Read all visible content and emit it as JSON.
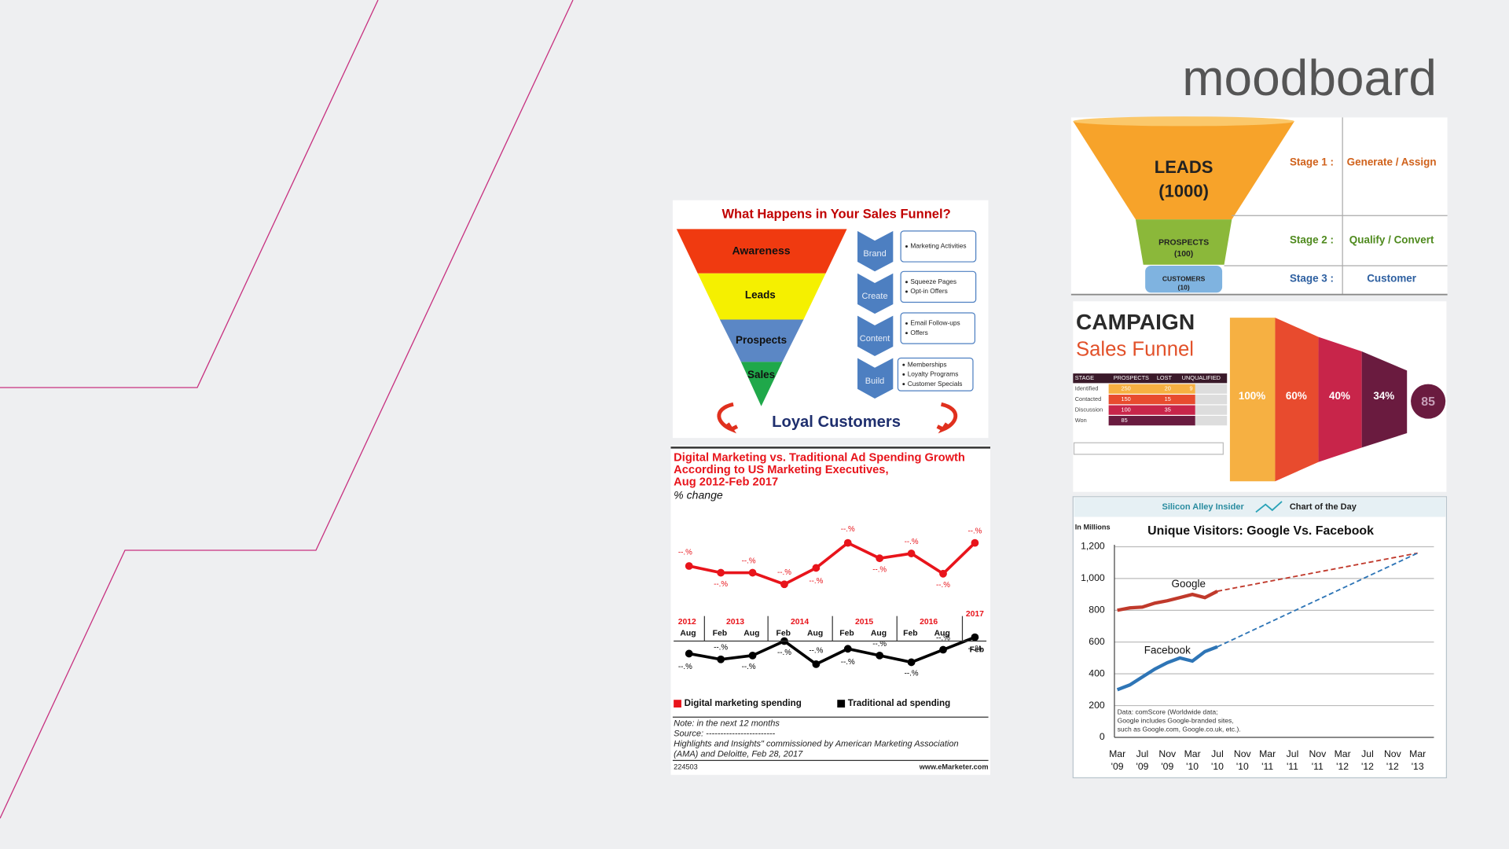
{
  "title": "moodboard",
  "sales_funnel": {
    "title": "What Happens in Your Sales Funnel?",
    "stages": [
      "Awareness",
      "Leads",
      "Prospects",
      "Sales"
    ],
    "steps": [
      {
        "label": "Brand",
        "items": [
          "Marketing Activities"
        ]
      },
      {
        "label": "Create",
        "items": [
          "Squeeze Pages",
          "Opt-in Offers"
        ]
      },
      {
        "label": "Content",
        "items": [
          "Email Follow-ups",
          "Offers"
        ]
      },
      {
        "label": "Build",
        "items": [
          "Memberships",
          "Loyalty Programs",
          "Customer Specials"
        ]
      }
    ],
    "footer": "Loyal Customers"
  },
  "ad_spending": {
    "title_lines": [
      "Digital Marketing vs. Traditional Ad Spending Growth",
      "According to US Marketing Executives,",
      "Aug 2012-Feb 2017"
    ],
    "subtitle": "% change",
    "point_label": "--.%",
    "years": [
      "2012",
      "2013",
      "2014",
      "2015",
      "2016",
      "2017"
    ],
    "months": [
      "Aug",
      "Feb",
      "Aug",
      "Feb",
      "Aug",
      "Feb",
      "Aug",
      "Feb",
      "Aug",
      "Feb"
    ],
    "ylim": [
      0,
      160
    ],
    "series": [
      {
        "name": "Digital marketing spending",
        "color": "#e8141b",
        "values": [
          112,
          105,
          105,
          93,
          110,
          136,
          120,
          125,
          104,
          136
        ]
      },
      {
        "name": "Traditional ad spending",
        "color": "#000000",
        "values": [
          21,
          15,
          19,
          34,
          10,
          26,
          19,
          12,
          25,
          38
        ]
      }
    ],
    "notes": [
      "Note: in the next 12 months",
      "Source: ------------------------",
      "Highlights and Insights\" commissioned by American Marketing Association",
      "(AMA) and Deloitte, Feb 28, 2017"
    ],
    "id": "224503",
    "site": "www.eMarketer.com"
  },
  "leads_funnel": {
    "levels": [
      {
        "name": "LEADS",
        "count": "(1000)"
      },
      {
        "name": "PROSPECTS",
        "count": "(100)"
      },
      {
        "name": "CUSTOMERS",
        "count": "(10)"
      }
    ],
    "stages": [
      {
        "label": "Stage 1 :",
        "action": "Generate / Assign"
      },
      {
        "label": "Stage 2 :",
        "action": "Qualify / Convert"
      },
      {
        "label": "Stage 3 :",
        "action": "Customer"
      }
    ]
  },
  "campaign": {
    "title": "CAMPAIGN",
    "subtitle": "Sales Funnel",
    "table_header": [
      "STAGE",
      "PROSPECTS",
      "LOST",
      "UNQUALIFIED"
    ],
    "table_rows": [
      [
        "Identified",
        "250",
        "20",
        "9"
      ],
      [
        "Contacted",
        "150",
        "15"
      ],
      [
        "Discussion",
        "100",
        "35"
      ],
      [
        "Won",
        "85"
      ]
    ],
    "bars": [
      "100%",
      "60%",
      "40%",
      "34%"
    ],
    "result": "85"
  },
  "visitors": {
    "header_left": "Silicon Alley Insider",
    "header_right": "Chart of the Day",
    "unit": "In Millions",
    "title": "Unique Visitors: Google Vs. Facebook",
    "ylim": [
      0,
      1200
    ],
    "yticks": [
      0,
      200,
      400,
      600,
      800,
      {
        "value": 1000,
        "label": "1,000"
      },
      {
        "value": 1200,
        "label": "1,200"
      }
    ],
    "xlim": [
      0,
      48
    ],
    "xtick_months": [
      "Mar",
      "Jul",
      "Nov",
      "Mar",
      "Jul",
      "Nov",
      "Mar",
      "Jul",
      "Nov",
      "Mar",
      "Jul",
      "Nov",
      "Mar"
    ],
    "xtick_years": [
      "'09",
      "'09",
      "'09",
      "'10",
      "'10",
      "'10",
      "'11",
      "'11",
      "'11",
      "'12",
      "'12",
      "'12",
      "'13"
    ],
    "series": [
      {
        "name": "Google",
        "color": "#c0392b",
        "x": [
          0,
          2,
          4,
          6,
          8,
          10,
          12,
          14,
          16
        ],
        "values": [
          800,
          815,
          820,
          845,
          860,
          880,
          900,
          880,
          920
        ],
        "projection_x": [
          16,
          48
        ],
        "projection_values": [
          920,
          1160
        ]
      },
      {
        "name": "Facebook",
        "color": "#2e75b6",
        "x": [
          0,
          2,
          4,
          6,
          8,
          10,
          12,
          14,
          16
        ],
        "values": [
          300,
          330,
          380,
          430,
          470,
          500,
          480,
          540,
          570
        ],
        "projection_x": [
          16,
          48
        ],
        "projection_values": [
          570,
          1160
        ]
      }
    ],
    "note_lines": [
      "Data: comScore (Worldwide data;",
      "Google includes Google-branded sites,",
      "such as Google.com, Google.co.uk, etc.)."
    ]
  }
}
